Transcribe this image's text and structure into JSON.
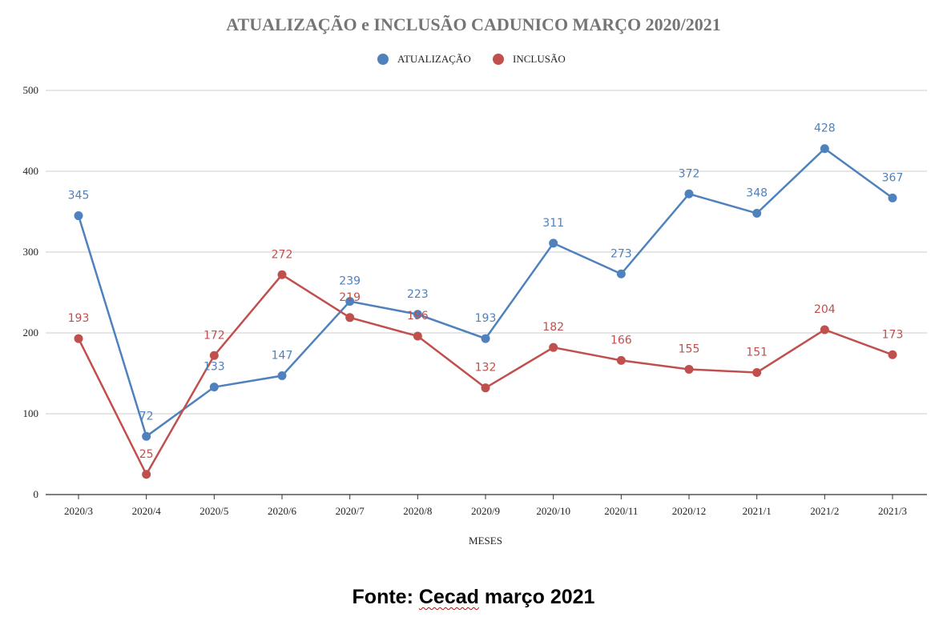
{
  "chart_data": {
    "type": "line",
    "title": "ATUALIZAÇÃO e INCLUSÃO CADUNICO MARÇO 2020/2021",
    "xlabel": "MESES",
    "ylabel": "",
    "ylim": [
      0,
      500
    ],
    "yticks": [
      0,
      100,
      200,
      300,
      400,
      500
    ],
    "grid": true,
    "legend_position": "top-center",
    "categories": [
      "2020/3",
      "2020/4",
      "2020/5",
      "2020/6",
      "2020/7",
      "2020/8",
      "2020/9",
      "2020/10",
      "2020/11",
      "2020/12",
      "2021/1",
      "2021/2",
      "2021/3"
    ],
    "series": [
      {
        "name": "ATUALIZAÇÃO",
        "color": "#4f81bd",
        "values": [
          345,
          72,
          133,
          147,
          239,
          223,
          193,
          311,
          273,
          372,
          348,
          428,
          367
        ]
      },
      {
        "name": "INCLUSÃO",
        "color": "#c0504d",
        "values": [
          193,
          25,
          172,
          272,
          219,
          196,
          132,
          182,
          166,
          155,
          151,
          204,
          173
        ]
      }
    ]
  },
  "footer": {
    "prefix": "Fonte: ",
    "source": "Cecad",
    "suffix": " março 2021"
  }
}
